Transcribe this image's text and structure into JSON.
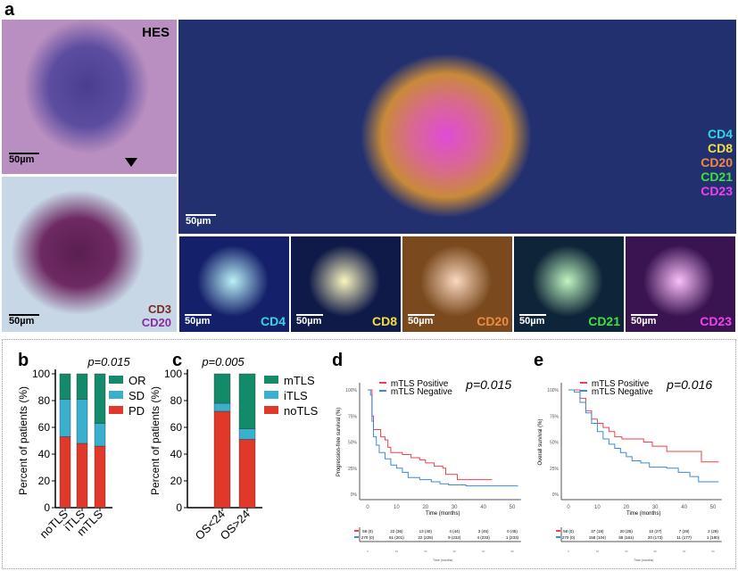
{
  "panel_labels": {
    "a": "a",
    "b": "b",
    "c": "c",
    "d": "d",
    "e": "e"
  },
  "panel_a": {
    "he_label": "HES",
    "scale": "50µm",
    "ihc_labels": [
      "CD3",
      "CD20"
    ],
    "ihc_colors": [
      "#7b2a20",
      "#8a2aa0"
    ],
    "big_markers": [
      {
        "name": "CD4",
        "color": "#33d6e6"
      },
      {
        "name": "CD8",
        "color": "#f0e040"
      },
      {
        "name": "CD20",
        "color": "#f08a40"
      },
      {
        "name": "CD21",
        "color": "#40e040"
      },
      {
        "name": "CD23",
        "color": "#f040f0"
      }
    ],
    "small_panels": [
      {
        "name": "CD4",
        "color": "#33d6e6"
      },
      {
        "name": "CD8",
        "color": "#f0e040"
      },
      {
        "name": "CD20",
        "color": "#f08a40"
      },
      {
        "name": "CD21",
        "color": "#40e040"
      },
      {
        "name": "CD23",
        "color": "#f040f0"
      }
    ]
  },
  "chart_data": [
    {
      "panel": "b",
      "type": "bar",
      "stacked": true,
      "pvalue": "p=0.015",
      "ylabel": "Percent of patients (%)",
      "ylim": [
        0,
        100
      ],
      "yticks": [
        0,
        20,
        40,
        60,
        80,
        100
      ],
      "categories": [
        "noTLS",
        "iTLS",
        "mTLS"
      ],
      "series": [
        {
          "name": "PD",
          "color": "#e0382b",
          "values": [
            53,
            48,
            46
          ]
        },
        {
          "name": "SD",
          "color": "#3ab0cf",
          "values": [
            28,
            33,
            17
          ]
        },
        {
          "name": "OR",
          "color": "#138a6a",
          "values": [
            19,
            19,
            37
          ]
        }
      ],
      "legend": "right"
    },
    {
      "panel": "c",
      "type": "bar",
      "stacked": true,
      "pvalue": "p=0.005",
      "ylabel": "Percent of patients (%)",
      "ylim": [
        0,
        100
      ],
      "yticks": [
        0,
        20,
        40,
        60,
        80,
        100
      ],
      "categories": [
        "OS<24",
        "OS>24"
      ],
      "series": [
        {
          "name": "noTLS",
          "color": "#e0382b",
          "values": [
            72,
            51
          ]
        },
        {
          "name": "iTLS",
          "color": "#3ab0cf",
          "values": [
            6,
            8
          ]
        },
        {
          "name": "mTLS",
          "color": "#138a6a",
          "values": [
            22,
            41
          ]
        }
      ],
      "legend": "right"
    },
    {
      "panel": "d",
      "type": "line",
      "step": true,
      "pvalue": "p=0.015",
      "ylabel": "Progression-free survival (%)",
      "xlabel": "Time (months)",
      "xlim": [
        0,
        52
      ],
      "ylim": [
        0,
        100
      ],
      "xticks": [
        0,
        10,
        20,
        30,
        40,
        50
      ],
      "yticks": [
        "0%",
        "25%",
        "50%",
        "75%",
        "100%"
      ],
      "legend": "top",
      "series": [
        {
          "name": "mTLS Positive",
          "color": "#f0404a",
          "x": [
            0,
            1,
            1.5,
            2,
            4,
            4.5,
            6,
            7,
            8,
            12,
            15,
            18,
            20,
            23,
            26,
            27,
            31,
            43
          ],
          "y": [
            100,
            100,
            75,
            62,
            62,
            55,
            52,
            45,
            40,
            38,
            35,
            33,
            30,
            27,
            25,
            19,
            14,
            14
          ],
          "risk": [
            "58 (0)",
            "22 (36)",
            "13 (40)",
            "4 (44)",
            "3 (45)",
            "0 (45)"
          ]
        },
        {
          "name": "mTLS Negative",
          "color": "#3a8ad6",
          "x": [
            0,
            1,
            1.5,
            2,
            3,
            4,
            6,
            8,
            10,
            12,
            14,
            18,
            22,
            25,
            28,
            34,
            52
          ],
          "y": [
            100,
            95,
            70,
            55,
            47,
            40,
            34,
            28,
            25,
            21,
            16,
            14,
            12,
            10,
            9,
            8,
            8
          ],
          "risk": [
            "270 (0)",
            "61 (201)",
            "22 (225)",
            "9 (232)",
            "4 (233)",
            "1 (233)"
          ]
        }
      ],
      "risk_xlabel": "Time (months)"
    },
    {
      "panel": "e",
      "type": "line",
      "step": true,
      "pvalue": "p=0.016",
      "ylabel": "Overall survival (%)",
      "xlabel": "Time (months)",
      "xlim": [
        0,
        52
      ],
      "ylim": [
        0,
        100
      ],
      "xticks": [
        0,
        10,
        20,
        30,
        40,
        50
      ],
      "yticks": [
        "0%",
        "25%",
        "50%",
        "75%",
        "100%"
      ],
      "legend": "top",
      "series": [
        {
          "name": "mTLS Positive",
          "color": "#f0404a",
          "x": [
            0,
            2,
            4,
            6,
            8,
            10,
            12,
            14,
            16,
            18,
            18.5,
            25,
            26,
            28,
            29,
            33,
            34,
            45,
            46,
            52
          ],
          "y": [
            100,
            100,
            92,
            80,
            72,
            68,
            64,
            60,
            55,
            55,
            53,
            53,
            50,
            50,
            46,
            46,
            41,
            41,
            31,
            31
          ],
          "risk": [
            "58 (0)",
            "37 (18)",
            "20 (25)",
            "10 (27)",
            "7 (28)",
            "2 (29)"
          ]
        },
        {
          "name": "mTLS Negative",
          "color": "#3a8ad6",
          "x": [
            0,
            2,
            4,
            6,
            8,
            10,
            12,
            14,
            16,
            18,
            20,
            22,
            25,
            28,
            34,
            38,
            42,
            45,
            52
          ],
          "y": [
            100,
            98,
            88,
            78,
            68,
            60,
            53,
            48,
            44,
            40,
            36,
            32,
            30,
            26,
            25,
            21,
            17,
            12,
            12
          ],
          "risk": [
            "270 (0)",
            "158 (104)",
            "58 (161)",
            "20 (173)",
            "11 (177)",
            "1 (180)"
          ]
        }
      ],
      "risk_xlabel": "Time (months)"
    }
  ]
}
